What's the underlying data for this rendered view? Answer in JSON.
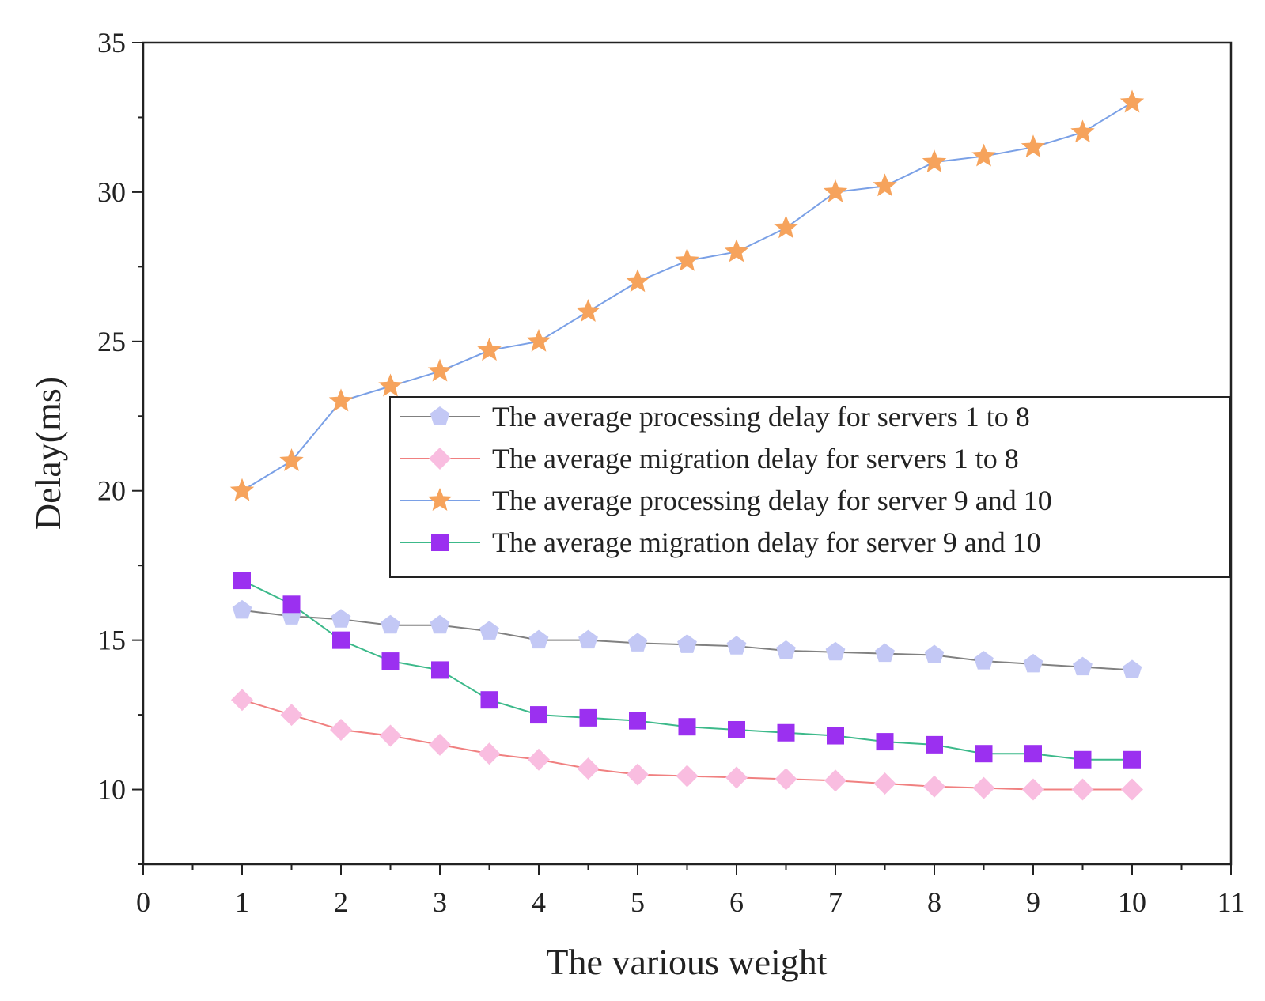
{
  "chart_data": {
    "type": "line",
    "title": "",
    "xlabel": "The various weight",
    "ylabel": "Delay(ms)",
    "xlim": [
      0,
      11
    ],
    "ylim": [
      7.5,
      35
    ],
    "xticks": [
      0,
      1,
      2,
      3,
      4,
      5,
      6,
      7,
      8,
      9,
      10,
      11
    ],
    "yticks": [
      10,
      15,
      20,
      25,
      30,
      35
    ],
    "grid": false,
    "legend_position": "center-right",
    "x": [
      1,
      1.5,
      2,
      2.5,
      3,
      3.5,
      4,
      4.5,
      5,
      5.5,
      6,
      6.5,
      7,
      7.5,
      8,
      8.5,
      9,
      9.5,
      10
    ],
    "series": [
      {
        "name": "The average processing delay for servers 1 to 8",
        "marker": "pentagon",
        "line_color": "#808080",
        "marker_color": "#c3c8f5",
        "values": [
          16,
          15.8,
          15.7,
          15.5,
          15.5,
          15.3,
          15,
          15,
          14.9,
          14.85,
          14.8,
          14.65,
          14.6,
          14.55,
          14.5,
          14.3,
          14.2,
          14.1,
          14
        ]
      },
      {
        "name": "The average migration delay for servers 1 to 8",
        "marker": "diamond",
        "line_color": "#f08080",
        "marker_color": "#f9bde0",
        "values": [
          13,
          12.5,
          12,
          11.8,
          11.5,
          11.2,
          11,
          10.7,
          10.5,
          10.45,
          10.4,
          10.35,
          10.3,
          10.2,
          10.1,
          10.05,
          10,
          10,
          10
        ]
      },
      {
        "name": "The average processing delay for server 9 and 10",
        "marker": "star",
        "line_color": "#7aa0e6",
        "marker_color": "#f6a35c",
        "values": [
          20,
          21,
          23,
          23.5,
          24,
          24.7,
          25,
          26,
          27,
          27.7,
          28,
          28.8,
          30,
          30.2,
          31,
          31.2,
          31.5,
          32,
          33
        ]
      },
      {
        "name": "The average migration delay for server 9 and 10",
        "marker": "square",
        "line_color": "#3cb98a",
        "marker_color": "#9b30f0",
        "values": [
          17,
          16.2,
          15,
          14.3,
          14,
          13,
          12.5,
          12.4,
          12.3,
          12.1,
          12,
          11.9,
          11.8,
          11.6,
          11.5,
          11.2,
          11.2,
          11,
          11
        ]
      }
    ]
  }
}
